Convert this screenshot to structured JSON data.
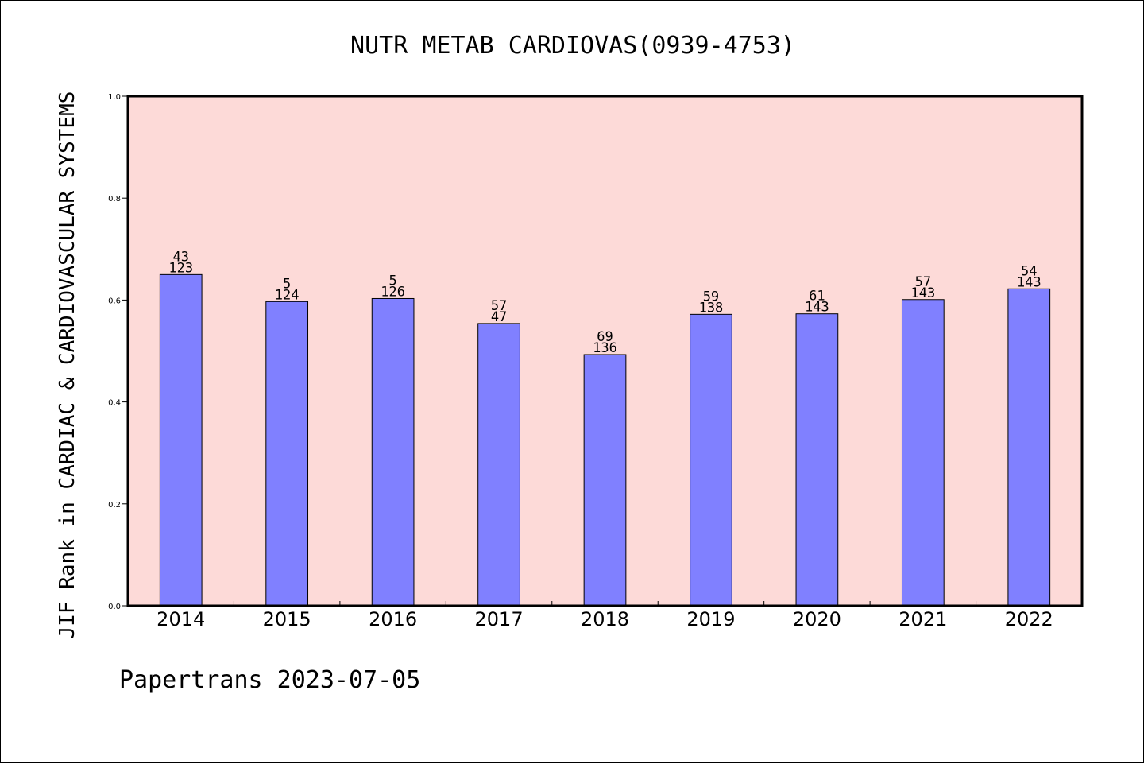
{
  "title": "NUTR METAB CARDIOVAS(0939-4753)",
  "footer": "Papertrans 2023-07-05",
  "colors": {
    "plot_background": "#FDDAD8",
    "bar_fill": "#8080FF",
    "bar_stroke": "#000000"
  },
  "chart_data": {
    "type": "bar",
    "title": "NUTR METAB CARDIOVAS(0939-4753)",
    "xlabel": "",
    "ylabel": "JIF Rank in CARDIAC & CARDIOVASCULAR SYSTEMS",
    "ylim": [
      0.0,
      1.0
    ],
    "yticks": [
      "0.0",
      "0.2",
      "0.4",
      "0.6",
      "0.8",
      "1.0"
    ],
    "categories": [
      "2014",
      "2015",
      "2016",
      "2017",
      "2018",
      "2019",
      "2020",
      "2021",
      "2022"
    ],
    "values": [
      0.65,
      0.597,
      0.603,
      0.554,
      0.493,
      0.572,
      0.573,
      0.601,
      0.622
    ],
    "labels_top": [
      "43",
      "5",
      "5",
      "57",
      "69",
      "59",
      "61",
      "57",
      "54"
    ],
    "labels_bottom": [
      "123",
      "124",
      "126",
      "47",
      "136",
      "138",
      "143",
      "143",
      "143"
    ],
    "grid": false,
    "legend": "none"
  }
}
